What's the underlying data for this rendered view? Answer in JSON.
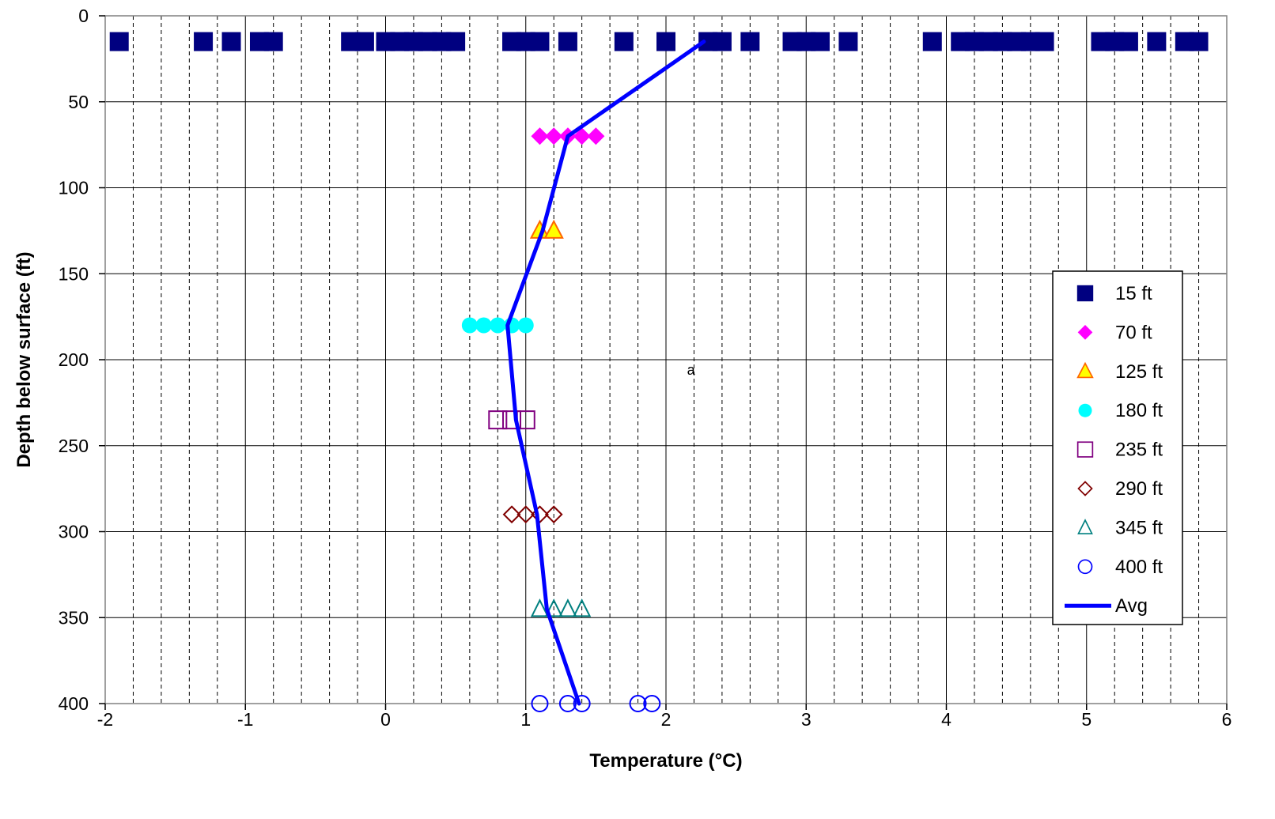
{
  "chart_data": {
    "type": "scatter",
    "xlabel": "Temperature (°C)",
    "ylabel": "Depth below surface (ft)",
    "xlim": [
      -2,
      6
    ],
    "ylim": [
      0,
      400
    ],
    "y_reversed": true,
    "x_ticks": [
      -2,
      -1,
      0,
      1,
      2,
      3,
      4,
      5,
      6
    ],
    "y_ticks": [
      0,
      50,
      100,
      150,
      200,
      250,
      300,
      350,
      400
    ],
    "x_minor_step": 0.2,
    "grid": "major solid, minor vertical dashed",
    "legend_position": "right",
    "annotation": "a",
    "annotation_pos": {
      "x": 2.15,
      "y": 206
    },
    "series": [
      {
        "name": "15 ft",
        "marker": "square-filled",
        "color": "#000080",
        "depth": 15,
        "x": [
          -1.9,
          -1.3,
          -1.1,
          -0.9,
          -0.8,
          -0.25,
          -0.15,
          0.0,
          0.1,
          0.2,
          0.3,
          0.4,
          0.5,
          0.9,
          1.0,
          1.1,
          1.3,
          1.7,
          2.0,
          2.3,
          2.4,
          2.6,
          2.9,
          3.0,
          3.1,
          3.3,
          3.9,
          4.1,
          4.2,
          4.3,
          4.4,
          4.5,
          4.6,
          4.7,
          5.1,
          5.2,
          5.3,
          5.5,
          5.7,
          5.8
        ]
      },
      {
        "name": "70 ft",
        "marker": "diamond-filled",
        "color": "#FF00FF",
        "depth": 70,
        "x": [
          1.1,
          1.2,
          1.3,
          1.4,
          1.5
        ]
      },
      {
        "name": "125 ft",
        "marker": "triangle-filled",
        "color": "#FFFF00",
        "stroke": "#FF6600",
        "depth": 125,
        "x": [
          1.1,
          1.2
        ]
      },
      {
        "name": "180 ft",
        "marker": "circle-filled",
        "color": "#00FFFF",
        "depth": 180,
        "x": [
          0.6,
          0.7,
          0.8,
          0.9,
          1.0
        ]
      },
      {
        "name": "235 ft",
        "marker": "square-open",
        "color": "#800080",
        "depth": 235,
        "x": [
          0.8,
          0.9,
          1.0
        ]
      },
      {
        "name": "290 ft",
        "marker": "diamond-open",
        "color": "#800000",
        "depth": 290,
        "x": [
          0.9,
          1.0,
          1.1,
          1.2
        ]
      },
      {
        "name": "345 ft",
        "marker": "triangle-open",
        "color": "#008080",
        "depth": 345,
        "x": [
          1.1,
          1.2,
          1.3,
          1.4
        ]
      },
      {
        "name": "400 ft",
        "marker": "circle-open",
        "color": "#0000FF",
        "depth": 400,
        "x": [
          1.1,
          1.3,
          1.4,
          1.8,
          1.9
        ]
      },
      {
        "name": "Avg",
        "marker": "line",
        "color": "#0000FF",
        "points": [
          [
            2.27,
            15
          ],
          [
            1.3,
            70
          ],
          [
            1.12,
            125
          ],
          [
            0.87,
            180
          ],
          [
            0.93,
            235
          ],
          [
            1.08,
            290
          ],
          [
            1.15,
            345
          ],
          [
            1.38,
            400
          ]
        ]
      }
    ]
  }
}
